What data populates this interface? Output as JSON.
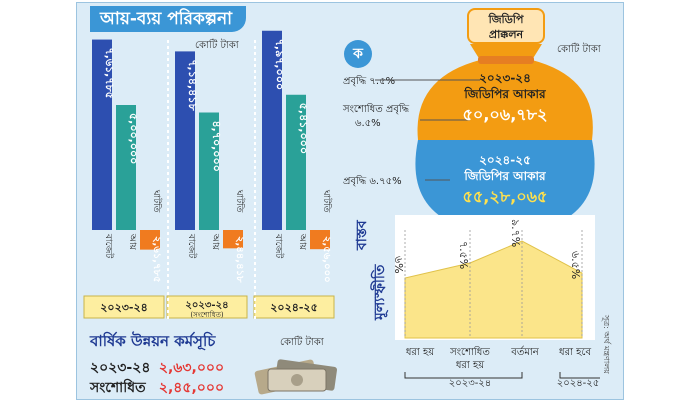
{
  "title": "আয়-ব্যয় পরিকল্পনা",
  "colors": {
    "frame": "#dcecf7",
    "title_bg": "#3b96d6",
    "budget_bar": "#2d4fb0",
    "income_bar": "#2aa198",
    "deficit_bar": "#f07b1f",
    "year_box": "#fdeea0",
    "bag_top": "#f39c12",
    "bag_bottom": "#3b96d6",
    "area_fill": "#fbe58a",
    "adp_value": "#e53935"
  },
  "budget_chart": {
    "unit": "কোটি টাকা",
    "chart_data": {
      "type": "bar",
      "title": "",
      "categories": [
        "২০২৩-২৪",
        "২০২৩-২৪ (সংশোধিত)",
        "২০২৪-২৫"
      ],
      "series": [
        {
          "name": "বাজেট",
          "values": [
            761785,
            714418,
            797000
          ],
          "labels": [
            "৭,৬১,৭৮৫",
            "৭,১৪,৪১৮",
            "৭,৯৭,০০০"
          ]
        },
        {
          "name": "আয়",
          "values": [
            500000,
            470000,
            541000
          ],
          "labels": [
            "৫,০০,০০০",
            "৪,৭০,০০০",
            "৫,৪১,০০০"
          ]
        },
        {
          "name": "ঘাটতি",
          "values": [
            261785,
            244418,
            256000
          ],
          "labels": [
            "২,৬১,৭৮৫",
            "২,৪৪,৪১৮",
            "২,৫৬,০০০"
          ]
        }
      ],
      "ylim": [
        0,
        800000
      ]
    },
    "year_labels": [
      "২০২৩-২৪",
      "২০২৩-২৪",
      "২০২৪-২৫"
    ],
    "year_sub": "(সংশোধিত)"
  },
  "adp": {
    "title": "বার্ষিক উন্নয়ন কর্মসূচি",
    "unit": "কোটি টাকা",
    "rows": [
      {
        "label": "২০২৩-২৪",
        "value": "২,৬৩,০০০"
      },
      {
        "label": "সংশোধিত",
        "value": "২,৪৫,০০০"
      }
    ]
  },
  "gdp": {
    "logo_letter": "ক",
    "header_line1": "জিডিপি",
    "header_line2": "প্রাক্কলন",
    "unit": "কোটি টাকা",
    "growth1": "প্রবৃদ্ধি ৭.৫%",
    "growth2_line1": "সংশোধিত প্রবৃদ্ধি",
    "growth2_line2": "৬.৫%",
    "growth3": "প্রবৃদ্ধি ৬.৭৫%",
    "bag1_year": "২০২৩-২৪",
    "bag1_label": "জিডিপির আকার",
    "bag1_value": "৫০,০৬,৭৮২",
    "bag2_year": "২০২৪-২৫",
    "bag2_label": "জিডিপির আকার",
    "bag2_value": "৫৫,২৮,০৬৫"
  },
  "inflation": {
    "title_line1": "বাস্তব",
    "title_line2": "মূল্যস্ফীতি",
    "chart_data": {
      "type": "area",
      "categories": [
        "ধরা হয়",
        "সংশোধিত ধরা হয়",
        "বর্তমান",
        "ধরা হবে"
      ],
      "values": [
        6.0,
        7.5,
        9.7,
        6.5
      ],
      "labels": [
        "৬%",
        "৭.৫%",
        "৯.৭%",
        "৬.৫%"
      ],
      "ylim": [
        0,
        10
      ]
    },
    "xlabels": [
      "ধরা হয়",
      "সংশোধিত",
      "ধরা হয়",
      "বর্তমান",
      "ধরা হবে"
    ],
    "year1": "২০২৩-২৪",
    "year2": "২০২৪-২৫"
  },
  "source": "সূত্র: অর্থ মন্ত্রণালয়"
}
